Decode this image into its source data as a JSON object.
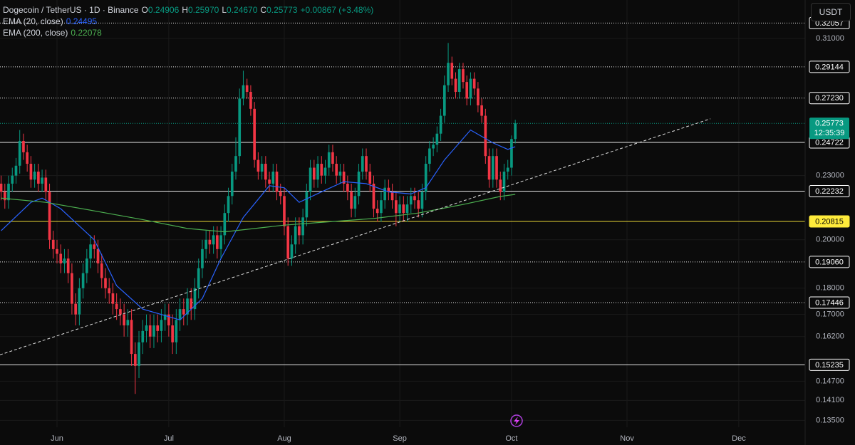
{
  "chart_data": {
    "type": "candlestick",
    "title": "Dogecoin / TetherUS · 1D · Binance",
    "ohlc_prefixes": [
      "O",
      "H",
      "L",
      "C"
    ],
    "legend_values": [
      "0.24906",
      "0.25970",
      "0.24670",
      "0.25773"
    ],
    "change_label": "+0.00867 (+3.48%)",
    "currency": "USDT",
    "countdown": "12:35:39",
    "up_color": "#089981",
    "down_color": "#f23645",
    "open": [
      0.226,
      0.222,
      0.218,
      0.226,
      0.23,
      0.235,
      0.248,
      0.242,
      0.236,
      0.228,
      0.232,
      0.226,
      0.229,
      0.222,
      0.2,
      0.196,
      0.194,
      0.19,
      0.192,
      0.186,
      0.174,
      0.17,
      0.18,
      0.186,
      0.192,
      0.198,
      0.196,
      0.19,
      0.184,
      0.18,
      0.178,
      0.174,
      0.172,
      0.17,
      0.166,
      0.168,
      0.156,
      0.152,
      0.16,
      0.164,
      0.166,
      0.162,
      0.166,
      0.164,
      0.168,
      0.17,
      0.166,
      0.16,
      0.168,
      0.172,
      0.17,
      0.176,
      0.172,
      0.18,
      0.188,
      0.196,
      0.2,
      0.198,
      0.202,
      0.196,
      0.202,
      0.212,
      0.22,
      0.232,
      0.24,
      0.272,
      0.28,
      0.276,
      0.266,
      0.238,
      0.232,
      0.236,
      0.228,
      0.226,
      0.232,
      0.222,
      0.22,
      0.206,
      0.192,
      0.198,
      0.206,
      0.202,
      0.21,
      0.222,
      0.234,
      0.228,
      0.236,
      0.23,
      0.234,
      0.242,
      0.236,
      0.23,
      0.232,
      0.226,
      0.222,
      0.214,
      0.22,
      0.232,
      0.24,
      0.232,
      0.226,
      0.214,
      0.212,
      0.218,
      0.224,
      0.222,
      0.218,
      0.212,
      0.216,
      0.212,
      0.216,
      0.22,
      0.218,
      0.214,
      0.222,
      0.236,
      0.244,
      0.246,
      0.252,
      0.262,
      0.28,
      0.294,
      0.284,
      0.276,
      0.29,
      0.282,
      0.272,
      0.284,
      0.278,
      0.268,
      0.262,
      0.24,
      0.228,
      0.24,
      0.228,
      0.222,
      0.232,
      0.234,
      0.24906
    ],
    "high": [
      0.23,
      0.226,
      0.23,
      0.234,
      0.239,
      0.254,
      0.252,
      0.246,
      0.24,
      0.236,
      0.236,
      0.233,
      0.233,
      0.226,
      0.204,
      0.2,
      0.198,
      0.196,
      0.196,
      0.19,
      0.178,
      0.184,
      0.19,
      0.196,
      0.202,
      0.202,
      0.2,
      0.194,
      0.188,
      0.184,
      0.182,
      0.178,
      0.176,
      0.174,
      0.172,
      0.172,
      0.16,
      0.164,
      0.168,
      0.17,
      0.17,
      0.17,
      0.17,
      0.172,
      0.174,
      0.174,
      0.17,
      0.172,
      0.176,
      0.176,
      0.18,
      0.18,
      0.184,
      0.192,
      0.2,
      0.204,
      0.204,
      0.206,
      0.206,
      0.206,
      0.216,
      0.224,
      0.236,
      0.25,
      0.278,
      0.289,
      0.284,
      0.28,
      0.27,
      0.242,
      0.24,
      0.24,
      0.232,
      0.236,
      0.236,
      0.226,
      0.224,
      0.21,
      0.202,
      0.21,
      0.21,
      0.214,
      0.226,
      0.238,
      0.238,
      0.24,
      0.24,
      0.238,
      0.246,
      0.246,
      0.24,
      0.236,
      0.236,
      0.23,
      0.226,
      0.224,
      0.236,
      0.244,
      0.244,
      0.236,
      0.23,
      0.218,
      0.222,
      0.228,
      0.228,
      0.226,
      0.222,
      0.22,
      0.22,
      0.22,
      0.224,
      0.224,
      0.222,
      0.226,
      0.24,
      0.248,
      0.25,
      0.256,
      0.266,
      0.286,
      0.307,
      0.298,
      0.288,
      0.294,
      0.294,
      0.286,
      0.288,
      0.288,
      0.282,
      0.272,
      0.266,
      0.244,
      0.244,
      0.244,
      0.232,
      0.236,
      0.238,
      0.251,
      0.2597
    ],
    "low": [
      0.218,
      0.214,
      0.214,
      0.222,
      0.226,
      0.231,
      0.238,
      0.232,
      0.224,
      0.224,
      0.222,
      0.222,
      0.218,
      0.196,
      0.192,
      0.19,
      0.186,
      0.186,
      0.182,
      0.17,
      0.166,
      0.166,
      0.176,
      0.182,
      0.188,
      0.192,
      0.186,
      0.18,
      0.176,
      0.174,
      0.17,
      0.168,
      0.166,
      0.162,
      0.162,
      0.152,
      0.143,
      0.148,
      0.156,
      0.16,
      0.158,
      0.158,
      0.16,
      0.16,
      0.164,
      0.162,
      0.156,
      0.156,
      0.164,
      0.166,
      0.166,
      0.168,
      0.168,
      0.176,
      0.184,
      0.192,
      0.194,
      0.194,
      0.192,
      0.192,
      0.198,
      0.208,
      0.216,
      0.228,
      0.236,
      0.268,
      0.272,
      0.262,
      0.234,
      0.228,
      0.228,
      0.224,
      0.222,
      0.222,
      0.218,
      0.216,
      0.202,
      0.189,
      0.189,
      0.194,
      0.198,
      0.198,
      0.206,
      0.218,
      0.224,
      0.224,
      0.226,
      0.226,
      0.23,
      0.232,
      0.226,
      0.226,
      0.222,
      0.218,
      0.21,
      0.21,
      0.216,
      0.228,
      0.228,
      0.222,
      0.21,
      0.208,
      0.208,
      0.214,
      0.218,
      0.214,
      0.206,
      0.208,
      0.208,
      0.208,
      0.212,
      0.214,
      0.21,
      0.21,
      0.218,
      0.232,
      0.24,
      0.242,
      0.248,
      0.258,
      0.276,
      0.28,
      0.272,
      0.272,
      0.278,
      0.268,
      0.268,
      0.274,
      0.264,
      0.258,
      0.236,
      0.224,
      0.224,
      0.224,
      0.218,
      0.218,
      0.228,
      0.23,
      0.2467
    ],
    "close": [
      0.222,
      0.218,
      0.226,
      0.23,
      0.235,
      0.248,
      0.242,
      0.236,
      0.228,
      0.232,
      0.226,
      0.229,
      0.222,
      0.2,
      0.196,
      0.194,
      0.19,
      0.192,
      0.186,
      0.174,
      0.17,
      0.18,
      0.186,
      0.192,
      0.198,
      0.196,
      0.19,
      0.184,
      0.18,
      0.178,
      0.174,
      0.172,
      0.17,
      0.166,
      0.168,
      0.156,
      0.152,
      0.16,
      0.164,
      0.166,
      0.162,
      0.166,
      0.164,
      0.168,
      0.17,
      0.166,
      0.16,
      0.168,
      0.172,
      0.17,
      0.176,
      0.172,
      0.18,
      0.188,
      0.196,
      0.2,
      0.198,
      0.202,
      0.196,
      0.202,
      0.212,
      0.22,
      0.232,
      0.24,
      0.272,
      0.28,
      0.276,
      0.266,
      0.238,
      0.232,
      0.236,
      0.228,
      0.226,
      0.232,
      0.222,
      0.22,
      0.206,
      0.192,
      0.198,
      0.206,
      0.202,
      0.21,
      0.222,
      0.234,
      0.228,
      0.236,
      0.23,
      0.234,
      0.242,
      0.236,
      0.23,
      0.232,
      0.226,
      0.222,
      0.214,
      0.22,
      0.232,
      0.24,
      0.232,
      0.226,
      0.214,
      0.212,
      0.218,
      0.224,
      0.222,
      0.218,
      0.212,
      0.216,
      0.212,
      0.216,
      0.22,
      0.218,
      0.214,
      0.222,
      0.236,
      0.244,
      0.246,
      0.252,
      0.262,
      0.28,
      0.294,
      0.284,
      0.276,
      0.29,
      0.282,
      0.272,
      0.284,
      0.278,
      0.268,
      0.262,
      0.24,
      0.228,
      0.24,
      0.228,
      0.222,
      0.232,
      0.234,
      0.24906,
      0.25773
    ],
    "series": [
      {
        "name": "EMA (20, close)",
        "color": "#2962ff",
        "x": [
          0,
          8,
          11,
          16,
          25,
          31,
          38,
          48,
          54,
          59,
          65,
          72,
          76,
          80,
          86,
          92,
          98,
          104,
          110,
          114,
          119,
          126,
          132,
          136,
          138
        ],
        "values": [
          0.204,
          0.217,
          0.219,
          0.214,
          0.2,
          0.181,
          0.172,
          0.168,
          0.176,
          0.192,
          0.21,
          0.225,
          0.224,
          0.217,
          0.222,
          0.227,
          0.226,
          0.222,
          0.221,
          0.224,
          0.238,
          0.254,
          0.247,
          0.2435,
          0.24495
        ]
      },
      {
        "name": "EMA (200, close)",
        "color": "#4caf50",
        "x": [
          0,
          12,
          25,
          38,
          50,
          60,
          76,
          88,
          100,
          112,
          124,
          134,
          138
        ],
        "values": [
          0.219,
          0.217,
          0.213,
          0.209,
          0.205,
          0.2035,
          0.2065,
          0.208,
          0.2095,
          0.212,
          0.216,
          0.2198,
          0.22078
        ]
      }
    ],
    "trendline": {
      "x": [
        -0.3,
        190.4
      ],
      "values": [
        0.1557,
        0.2603
      ],
      "color": "#e0e0e0"
    },
    "levels": [
      {
        "value": 0.32057,
        "label": "0.32057",
        "color": "#ffffff",
        "style": "dotted"
      },
      {
        "value": 0.29144,
        "label": "0.29144",
        "color": "#ffffff",
        "style": "dotted"
      },
      {
        "value": 0.2723,
        "label": "0.27230",
        "color": "#ffffff",
        "style": "dotted"
      },
      {
        "value": 0.24722,
        "label": "0.24722",
        "color": "#ffffff",
        "style": "solid"
      },
      {
        "value": 0.22232,
        "label": "0.22232",
        "color": "#ffffff",
        "style": "solid"
      },
      {
        "value": 0.20815,
        "label": "0.20815",
        "color": "#ffeb3b",
        "style": "solid"
      },
      {
        "value": 0.1906,
        "label": "0.19060",
        "color": "#ffffff",
        "style": "dotted"
      },
      {
        "value": 0.17446,
        "label": "0.17446",
        "color": "#ffffff",
        "style": "dotted"
      },
      {
        "value": 0.15235,
        "label": "0.15235",
        "color": "#ffffff",
        "style": "solid"
      }
    ],
    "xlim": [
      -0.3,
      215.8
    ],
    "xticks": [
      {
        "value": 15,
        "label": "Jun"
      },
      {
        "value": 45,
        "label": "Jul"
      },
      {
        "value": 76,
        "label": "Aug"
      },
      {
        "value": 107,
        "label": "Sep"
      },
      {
        "value": 137,
        "label": "Oct"
      },
      {
        "value": 168,
        "label": "Nov"
      },
      {
        "value": 198,
        "label": "Dec"
      }
    ],
    "ylim": [
      0.133,
      0.3371
    ],
    "yticks": [
      {
        "value": 0.31,
        "label": "0.31000"
      },
      {
        "value": 0.23,
        "label": "0.23000"
      },
      {
        "value": 0.2,
        "label": "0.20000"
      },
      {
        "value": 0.18,
        "label": "0.18000"
      },
      {
        "value": 0.17,
        "label": "0.17000"
      },
      {
        "value": 0.162,
        "label": "0.16200"
      },
      {
        "value": 0.147,
        "label": "0.14700"
      },
      {
        "value": 0.141,
        "label": "0.14100"
      },
      {
        "value": 0.135,
        "label": "0.13500"
      }
    ],
    "log_scale": true,
    "grid": true
  }
}
